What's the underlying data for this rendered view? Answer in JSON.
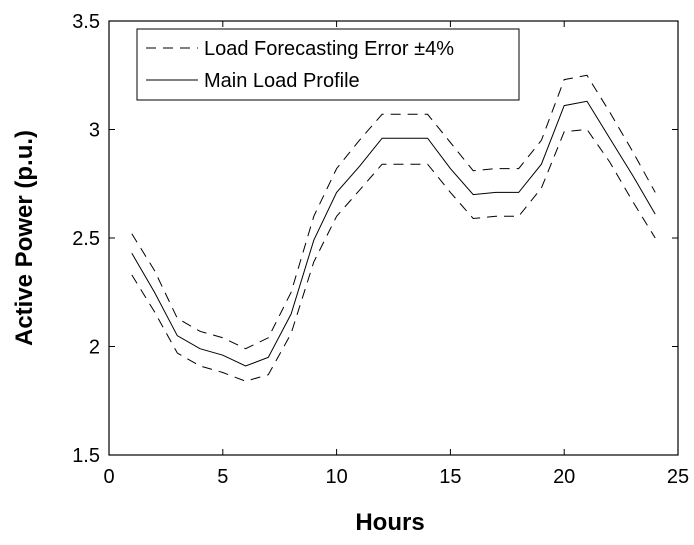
{
  "chart_data": {
    "type": "line",
    "title": "",
    "xlabel": "Hours",
    "ylabel": "Active Power (p.u.)",
    "xlim": [
      0,
      25
    ],
    "ylim": [
      1.5,
      3.5
    ],
    "xticks": [
      0,
      5,
      10,
      15,
      20,
      25
    ],
    "yticks": [
      1.5,
      2,
      2.5,
      3,
      3.5
    ],
    "xtick_labels": [
      "0",
      "5",
      "10",
      "15",
      "20",
      "25"
    ],
    "ytick_labels": [
      "1.5",
      "2",
      "2.5",
      "3",
      "3.5"
    ],
    "grid": false,
    "legend_position": "top-left",
    "x": [
      1,
      2,
      3,
      4,
      5,
      6,
      7,
      8,
      9,
      10,
      11,
      12,
      13,
      14,
      15,
      16,
      17,
      18,
      19,
      20,
      21,
      22,
      23,
      24
    ],
    "series": [
      {
        "name": "Load Forecasting Error ±4%",
        "style": "dashed",
        "color": "#000000",
        "values": [
          2.52,
          2.35,
          2.13,
          2.07,
          2.04,
          1.99,
          2.04,
          2.25,
          2.6,
          2.82,
          2.95,
          3.07,
          3.07,
          3.07,
          2.94,
          2.81,
          2.82,
          2.82,
          2.95,
          3.23,
          3.25,
          3.08,
          2.9,
          2.71
        ]
      },
      {
        "name": "Main Load Profile",
        "style": "solid",
        "color": "#000000",
        "values": [
          2.43,
          2.25,
          2.05,
          1.99,
          1.96,
          1.91,
          1.95,
          2.15,
          2.49,
          2.71,
          2.83,
          2.96,
          2.96,
          2.96,
          2.82,
          2.7,
          2.71,
          2.71,
          2.84,
          3.11,
          3.13,
          2.96,
          2.79,
          2.61
        ]
      },
      {
        "name": "",
        "style": "dashed",
        "color": "#000000",
        "values": [
          2.33,
          2.16,
          1.97,
          1.91,
          1.88,
          1.84,
          1.87,
          2.06,
          2.39,
          2.6,
          2.72,
          2.84,
          2.84,
          2.84,
          2.71,
          2.59,
          2.6,
          2.6,
          2.73,
          2.99,
          3.0,
          2.85,
          2.67,
          2.5
        ]
      }
    ],
    "legend": [
      {
        "label": "Load Forecasting Error ±4%",
        "style": "dashed"
      },
      {
        "label": "Main Load Profile",
        "style": "solid"
      }
    ]
  }
}
